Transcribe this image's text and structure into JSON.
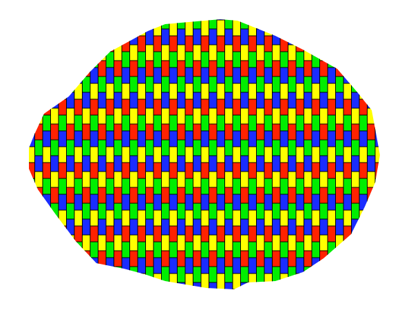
{
  "pattern": {
    "colors": [
      "#ff2200",
      "#00ee00",
      "#1a2cff",
      "#ffff00"
    ],
    "outline_color": "#000000",
    "background": "#ffffff"
  }
}
